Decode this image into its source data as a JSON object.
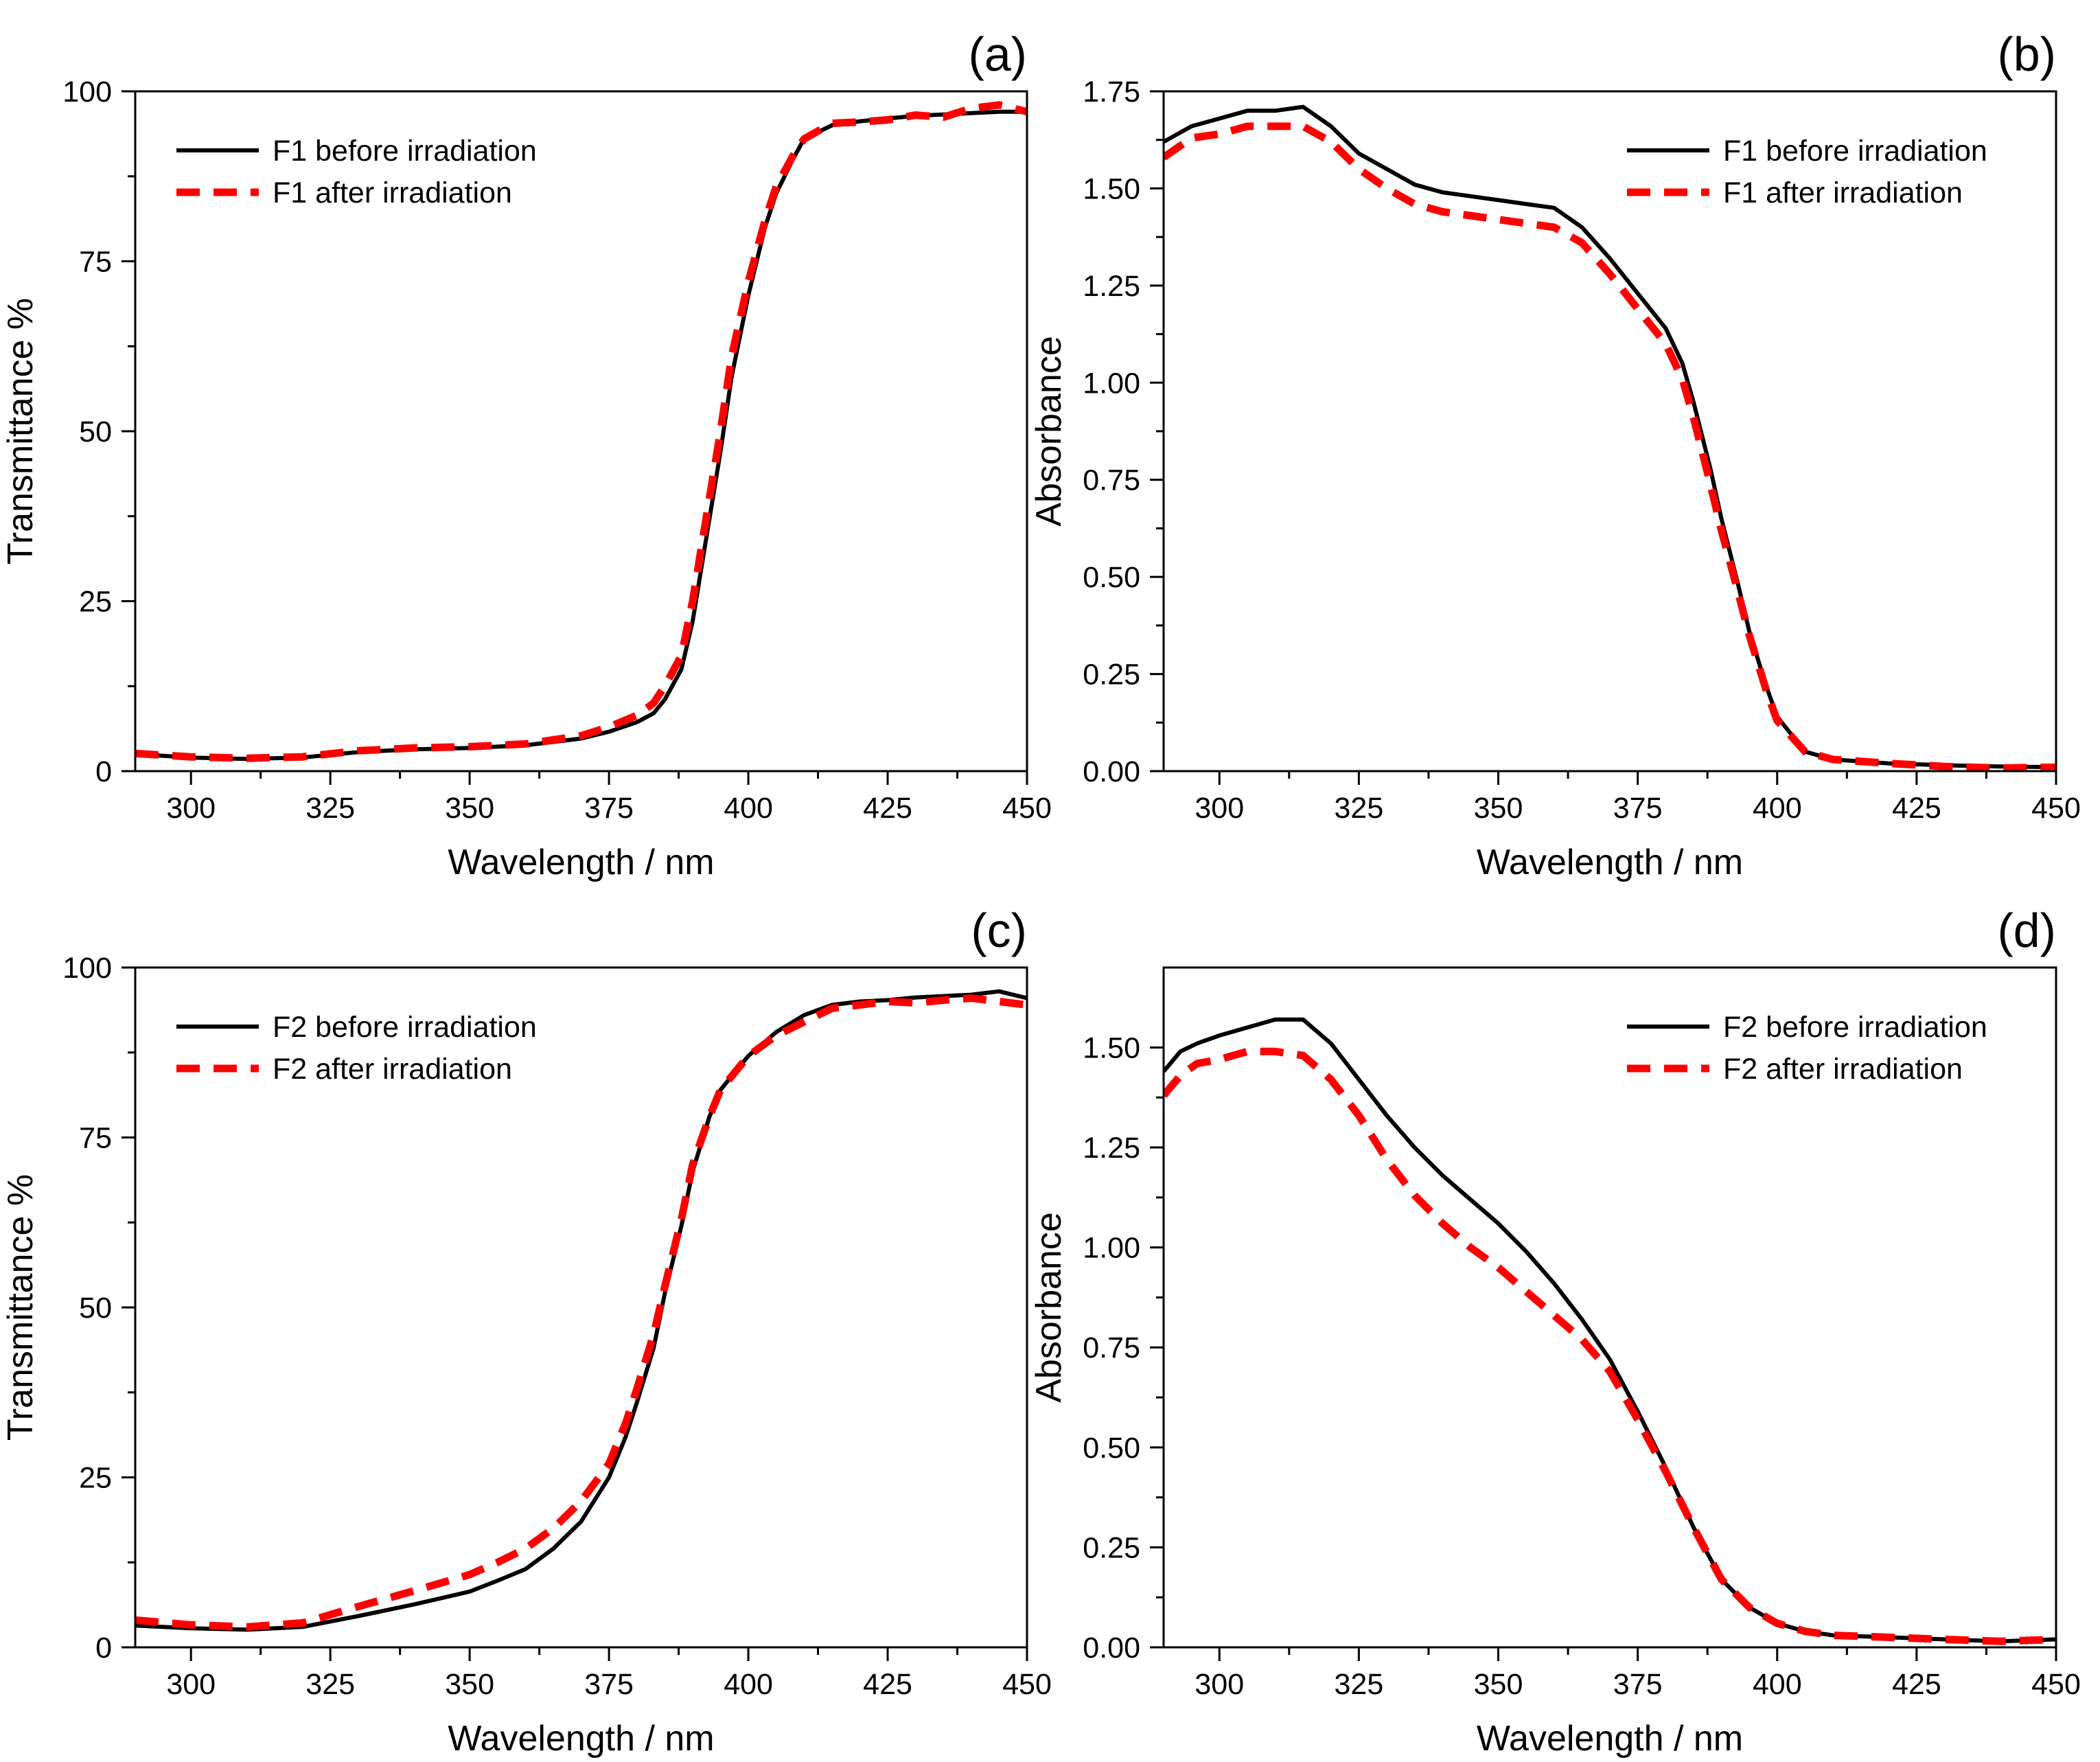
{
  "chart_data": [
    {
      "panel_label": "(a)",
      "type": "line",
      "xlabel": "Wavelength / nm",
      "ylabel": "Transmittance %",
      "xlim": [
        290,
        450
      ],
      "ylim": [
        0,
        100
      ],
      "xticks": [
        300,
        325,
        350,
        375,
        400,
        425,
        450
      ],
      "yticks": [
        0,
        25,
        50,
        75,
        100
      ],
      "ytick_labels": [
        "0",
        "25",
        "50",
        "75",
        "100"
      ],
      "legend_position": "top-left",
      "series": [
        {
          "name": "F1 before irradiation",
          "color": "#000000",
          "dashed": false,
          "x": [
            290,
            300,
            310,
            320,
            330,
            340,
            350,
            360,
            370,
            375,
            380,
            383,
            385,
            388,
            390,
            392,
            395,
            397,
            400,
            403,
            405,
            408,
            410,
            415,
            420,
            425,
            430,
            435,
            440,
            445,
            450
          ],
          "y": [
            2.5,
            2.0,
            1.8,
            2.0,
            2.8,
            3.2,
            3.4,
            3.8,
            4.8,
            5.8,
            7.2,
            8.5,
            10.5,
            15,
            22,
            32,
            47,
            58,
            70,
            80,
            85,
            90,
            93,
            95,
            95.6,
            96,
            96.4,
            96.6,
            96.8,
            97,
            97
          ]
        },
        {
          "name": "F1 after irradiation",
          "color": "#ff0000",
          "dashed": true,
          "x": [
            290,
            300,
            310,
            320,
            330,
            340,
            350,
            360,
            370,
            375,
            380,
            383,
            385,
            388,
            390,
            392,
            395,
            397,
            400,
            403,
            405,
            408,
            410,
            415,
            420,
            425,
            430,
            435,
            440,
            445,
            450
          ],
          "y": [
            2.6,
            2.1,
            1.9,
            2.1,
            3.0,
            3.4,
            3.6,
            4.0,
            5.2,
            6.5,
            8.2,
            10,
            12.5,
            17,
            25,
            35,
            50,
            61,
            72,
            81,
            86,
            90.5,
            93,
            95.3,
            95.5,
            95.8,
            96.5,
            96.2,
            97.5,
            98,
            97
          ]
        }
      ]
    },
    {
      "panel_label": "(b)",
      "type": "line",
      "xlabel": "Wavelength / nm",
      "ylabel": "Absorbance",
      "xlim": [
        290,
        450
      ],
      "ylim": [
        0,
        1.75
      ],
      "xticks": [
        300,
        325,
        350,
        375,
        400,
        425,
        450
      ],
      "yticks": [
        0,
        0.25,
        0.5,
        0.75,
        1.0,
        1.25,
        1.5,
        1.75
      ],
      "ytick_labels": [
        "0.00",
        "0.25",
        "0.50",
        "0.75",
        "1.00",
        "1.25",
        "1.50",
        "1.75"
      ],
      "legend_position": "top-right",
      "series": [
        {
          "name": "F1 before irradiation",
          "color": "#000000",
          "dashed": false,
          "x": [
            290,
            295,
            300,
            305,
            310,
            315,
            320,
            325,
            330,
            335,
            340,
            345,
            350,
            355,
            360,
            365,
            370,
            375,
            380,
            383,
            385,
            388,
            390,
            393,
            395,
            398,
            400,
            405,
            410,
            420,
            430,
            440,
            450
          ],
          "y": [
            1.62,
            1.66,
            1.68,
            1.7,
            1.7,
            1.71,
            1.66,
            1.59,
            1.55,
            1.51,
            1.49,
            1.48,
            1.47,
            1.46,
            1.45,
            1.4,
            1.32,
            1.23,
            1.14,
            1.05,
            0.95,
            0.78,
            0.65,
            0.48,
            0.36,
            0.22,
            0.14,
            0.05,
            0.03,
            0.02,
            0.015,
            0.012,
            0.01
          ]
        },
        {
          "name": "F1 after irradiation",
          "color": "#ff0000",
          "dashed": true,
          "x": [
            290,
            295,
            300,
            305,
            310,
            315,
            320,
            325,
            330,
            335,
            340,
            345,
            350,
            355,
            360,
            365,
            370,
            375,
            380,
            383,
            385,
            388,
            390,
            393,
            395,
            398,
            400,
            405,
            410,
            420,
            430,
            440,
            450
          ],
          "y": [
            1.58,
            1.63,
            1.64,
            1.66,
            1.66,
            1.66,
            1.62,
            1.55,
            1.5,
            1.46,
            1.44,
            1.43,
            1.42,
            1.41,
            1.4,
            1.36,
            1.28,
            1.19,
            1.1,
            1.01,
            0.91,
            0.74,
            0.62,
            0.46,
            0.35,
            0.21,
            0.13,
            0.05,
            0.03,
            0.02,
            0.012,
            0.008,
            0.01
          ]
        }
      ]
    },
    {
      "panel_label": "(c)",
      "type": "line",
      "xlabel": "Wavelength / nm",
      "ylabel": "Transmittance %",
      "xlim": [
        290,
        450
      ],
      "ylim": [
        0,
        100
      ],
      "xticks": [
        300,
        325,
        350,
        375,
        400,
        425,
        450
      ],
      "yticks": [
        0,
        25,
        50,
        75,
        100
      ],
      "ytick_labels": [
        "0",
        "25",
        "50",
        "75",
        "100"
      ],
      "legend_position": "top-left",
      "series": [
        {
          "name": "F2 before irradiation",
          "color": "#000000",
          "dashed": false,
          "x": [
            290,
            300,
            310,
            320,
            330,
            340,
            350,
            355,
            360,
            365,
            370,
            375,
            378,
            380,
            383,
            385,
            388,
            390,
            393,
            395,
            398,
            400,
            405,
            410,
            415,
            420,
            425,
            430,
            435,
            440,
            445,
            450
          ],
          "y": [
            3.2,
            2.8,
            2.6,
            3.0,
            4.6,
            6.3,
            8.2,
            9.8,
            11.5,
            14.5,
            18.5,
            25,
            31,
            36,
            44,
            52,
            62,
            70,
            78,
            82,
            85,
            87,
            90.5,
            93,
            94.5,
            95,
            95.2,
            95.6,
            95.8,
            96,
            96.5,
            95.5
          ]
        },
        {
          "name": "F2 after irradiation",
          "color": "#ff0000",
          "dashed": true,
          "x": [
            290,
            300,
            310,
            320,
            330,
            340,
            350,
            355,
            360,
            365,
            370,
            375,
            378,
            380,
            383,
            385,
            388,
            390,
            393,
            395,
            398,
            400,
            405,
            410,
            415,
            420,
            425,
            430,
            435,
            440,
            445,
            450
          ],
          "y": [
            4.0,
            3.3,
            3.0,
            3.6,
            6.0,
            8.3,
            10.7,
            12.5,
            14.5,
            17.5,
            21.5,
            27,
            33,
            38,
            46,
            53,
            63,
            71,
            78,
            82,
            85,
            87,
            90,
            92,
            94,
            94.5,
            95,
            94.8,
            95.2,
            95.5,
            95,
            94.5
          ]
        }
      ]
    },
    {
      "panel_label": "(d)",
      "type": "line",
      "xlabel": "Wavelength / nm",
      "ylabel": "Absorbance",
      "xlim": [
        290,
        450
      ],
      "ylim": [
        0,
        1.7
      ],
      "xticks": [
        300,
        325,
        350,
        375,
        400,
        425,
        450
      ],
      "yticks": [
        0,
        0.25,
        0.5,
        0.75,
        1.0,
        1.25,
        1.5
      ],
      "ytick_labels": [
        "0.00",
        "0.25",
        "0.50",
        "0.75",
        "1.00",
        "1.25",
        "1.50"
      ],
      "legend_position": "top-right",
      "series": [
        {
          "name": "F2 before irradiation",
          "color": "#000000",
          "dashed": false,
          "x": [
            290,
            293,
            296,
            300,
            305,
            310,
            315,
            320,
            325,
            330,
            335,
            340,
            345,
            350,
            355,
            360,
            365,
            370,
            375,
            380,
            385,
            390,
            395,
            400,
            405,
            410,
            420,
            430,
            440,
            450
          ],
          "y": [
            1.44,
            1.49,
            1.51,
            1.53,
            1.55,
            1.57,
            1.57,
            1.51,
            1.42,
            1.33,
            1.25,
            1.18,
            1.12,
            1.06,
            0.99,
            0.91,
            0.82,
            0.72,
            0.59,
            0.45,
            0.3,
            0.17,
            0.1,
            0.06,
            0.04,
            0.03,
            0.025,
            0.02,
            0.015,
            0.02
          ]
        },
        {
          "name": "F2 after irradiation",
          "color": "#ff0000",
          "dashed": true,
          "x": [
            290,
            293,
            296,
            300,
            305,
            310,
            315,
            320,
            325,
            330,
            335,
            340,
            345,
            350,
            355,
            360,
            365,
            370,
            375,
            380,
            385,
            390,
            395,
            400,
            405,
            410,
            420,
            430,
            440,
            450
          ],
          "y": [
            1.38,
            1.43,
            1.46,
            1.47,
            1.49,
            1.49,
            1.48,
            1.42,
            1.33,
            1.22,
            1.13,
            1.06,
            1.0,
            0.95,
            0.89,
            0.83,
            0.77,
            0.69,
            0.57,
            0.44,
            0.3,
            0.17,
            0.1,
            0.06,
            0.04,
            0.03,
            0.025,
            0.02,
            0.015,
            0.02
          ]
        }
      ]
    }
  ]
}
